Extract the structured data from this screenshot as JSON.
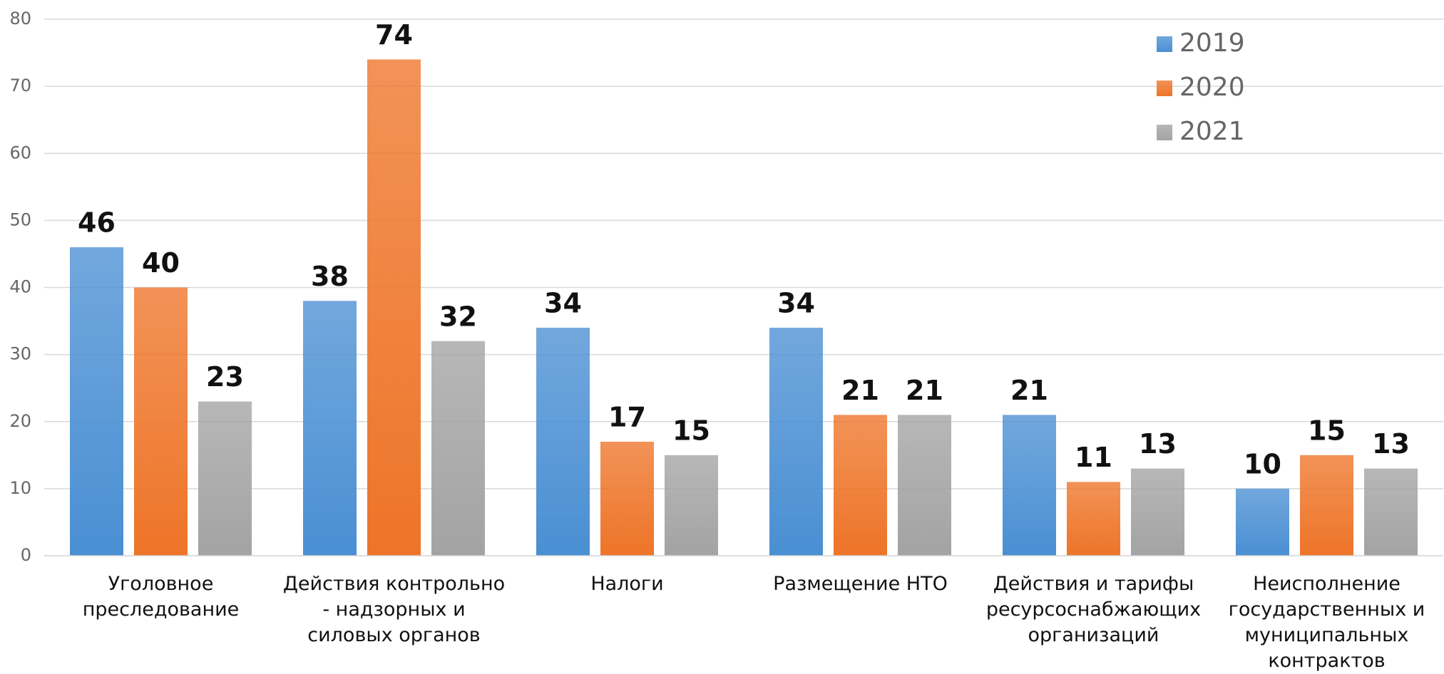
{
  "chart_data": {
    "type": "bar",
    "categories": [
      "Уголовное преследование",
      "Действия контрольно - надзорных и силовых органов",
      "Налоги",
      "Размещение НТО",
      "Действия и тарифы ресурсоснабжающих организаций",
      "Неисполнение государственных и муниципальных контрактов"
    ],
    "series": [
      {
        "name": "2019",
        "color": "#4a8fd3",
        "values": [
          46,
          38,
          34,
          34,
          21,
          10
        ]
      },
      {
        "name": "2020",
        "color": "#ee7428",
        "values": [
          40,
          74,
          17,
          21,
          11,
          15
        ]
      },
      {
        "name": "2021",
        "color": "#a3a3a3",
        "values": [
          23,
          32,
          15,
          21,
          13,
          13
        ]
      }
    ],
    "ylim": [
      0,
      80
    ],
    "yticks": [
      0,
      10,
      20,
      30,
      40,
      50,
      60,
      70,
      80
    ],
    "grid": true,
    "legend": "top-right"
  }
}
